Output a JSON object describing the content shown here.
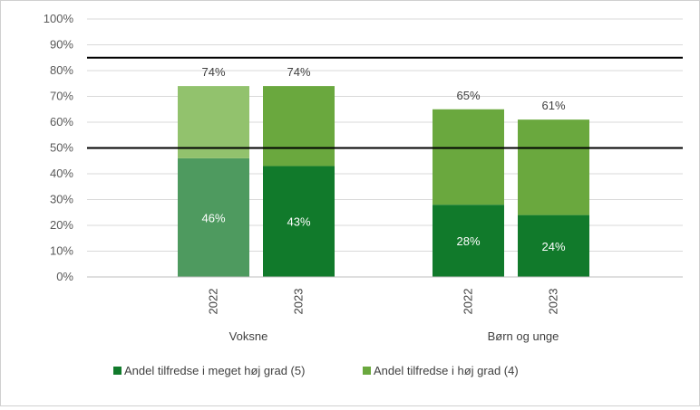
{
  "chart_data": {
    "type": "bar",
    "stacked": true,
    "ylim": [
      0,
      1
    ],
    "y_ticks": [
      "0%",
      "10%",
      "20%",
      "30%",
      "40%",
      "50%",
      "60%",
      "70%",
      "80%",
      "90%",
      "100%"
    ],
    "groups": [
      {
        "label": "Voksne",
        "bars": [
          {
            "label": "2022",
            "segments": [
              0.46,
              0.28
            ],
            "inner_label": "46%",
            "total_label": "74%",
            "colors": [
              "#4e9a5f",
              "#92c26d"
            ]
          },
          {
            "label": "2023",
            "segments": [
              0.43,
              0.31
            ],
            "inner_label": "43%",
            "total_label": "74%",
            "colors": [
              "#117a2b",
              "#6aa83e"
            ]
          }
        ]
      },
      {
        "label": "Børn og unge",
        "bars": [
          {
            "label": "2022",
            "segments": [
              0.28,
              0.37
            ],
            "inner_label": "28%",
            "total_label": "65%",
            "colors": [
              "#117a2b",
              "#6aa83e"
            ]
          },
          {
            "label": "2023",
            "segments": [
              0.24,
              0.37
            ],
            "inner_label": "24%",
            "total_label": "61%",
            "colors": [
              "#117a2b",
              "#6aa83e"
            ]
          }
        ]
      }
    ],
    "reference_lines": [
      0.5,
      0.85
    ],
    "legend": [
      {
        "label": "Andel tilfredse i meget høj grad (5)",
        "color": "#117a2b"
      },
      {
        "label": "Andel tilfredse i høj grad (4)",
        "color": "#6aa83e"
      }
    ],
    "legend_position": "bottom",
    "grid": true
  }
}
